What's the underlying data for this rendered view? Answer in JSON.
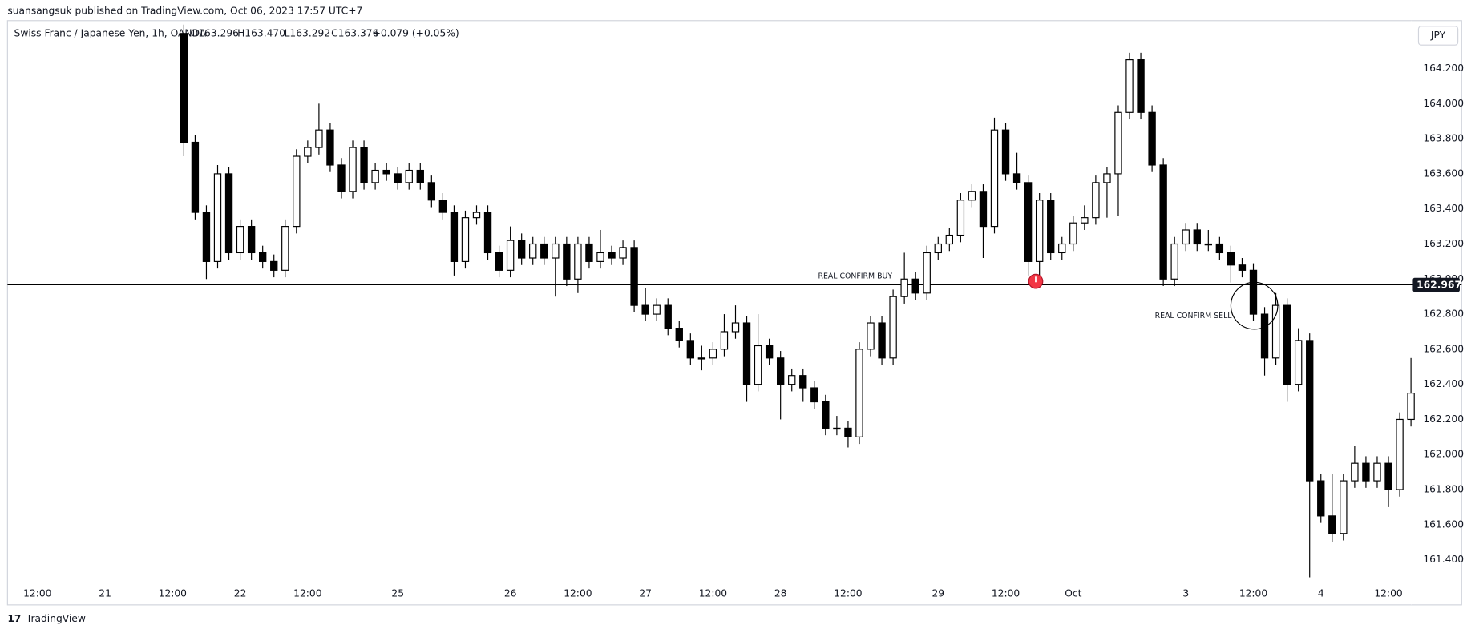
{
  "chart_data": {
    "type": "candlestick",
    "publisher_line": "suansangsuk published on TradingView.com, Oct 06, 2023 17:57 UTC+7",
    "legend_title": "Swiss Franc / Japanese Yen, 1h, OANDA",
    "ohlc_readout": [
      "O163.296",
      "H163.470",
      "L163.292",
      "C163.376",
      "+0.079 (+0.05%)"
    ],
    "currency": "JPY",
    "brand": "TradingView",
    "annotations": [
      "REAL CONFIRM BUY",
      "REAL CONFIRM SELL"
    ],
    "hline": 162.967,
    "grid": false,
    "up_color": "#ffffff",
    "down_color": "#000000",
    "ylim": [
      161.266,
      164.473
    ],
    "yticks": [
      {
        "value": 161.4,
        "label": "161.400"
      },
      {
        "value": 161.6,
        "label": "161.600"
      },
      {
        "value": 161.8,
        "label": "161.800"
      },
      {
        "value": 162.0,
        "label": "162.000"
      },
      {
        "value": 162.2,
        "label": "162.200"
      },
      {
        "value": 162.4,
        "label": "162.400"
      },
      {
        "value": 162.6,
        "label": "162.600"
      },
      {
        "value": 162.8,
        "label": "162.800"
      },
      {
        "value": 163.0,
        "label": "163.000"
      },
      {
        "value": 163.2,
        "label": "163.200"
      },
      {
        "value": 163.4,
        "label": "163.400"
      },
      {
        "value": 163.6,
        "label": "163.600"
      },
      {
        "value": 163.8,
        "label": "163.800"
      },
      {
        "value": 164.0,
        "label": "164.000"
      },
      {
        "value": 164.2,
        "label": "164.200"
      }
    ],
    "categories": [
      "12:00",
      null,
      null,
      null,
      null,
      null,
      "21",
      null,
      null,
      null,
      null,
      null,
      "12:00",
      null,
      null,
      null,
      null,
      null,
      "22",
      null,
      null,
      null,
      null,
      null,
      "12:00",
      null,
      null,
      null,
      null,
      null,
      null,
      null,
      "25",
      null,
      null,
      null,
      null,
      null,
      null,
      null,
      null,
      null,
      "26",
      null,
      null,
      null,
      null,
      null,
      "12:00",
      null,
      null,
      null,
      null,
      null,
      "27",
      null,
      null,
      null,
      null,
      null,
      "12:00",
      null,
      null,
      null,
      null,
      null,
      "28",
      null,
      null,
      null,
      null,
      null,
      "12:00",
      null,
      null,
      null,
      null,
      null,
      null,
      null,
      "29",
      null,
      null,
      null,
      null,
      null,
      "12:00",
      null,
      null,
      null,
      null,
      null,
      "Oct",
      null,
      null,
      null,
      null,
      null,
      null,
      null,
      null,
      null,
      "3",
      null,
      null,
      null,
      null,
      null,
      "12:00",
      null,
      null,
      null,
      null,
      null,
      "4",
      null,
      null,
      null,
      null,
      null,
      "12:00",
      null,
      null
    ],
    "ohlc": [
      null,
      null,
      null,
      null,
      null,
      null,
      null,
      null,
      null,
      null,
      null,
      null,
      null,
      [
        164.4,
        164.45,
        163.7,
        163.78
      ],
      [
        163.78,
        163.82,
        163.34,
        163.38
      ],
      [
        163.38,
        163.42,
        163.0,
        163.1
      ],
      [
        163.1,
        163.65,
        163.06,
        163.6
      ],
      [
        163.6,
        163.64,
        163.11,
        163.15
      ],
      [
        163.15,
        163.34,
        163.11,
        163.3
      ],
      [
        163.3,
        163.34,
        163.11,
        163.15
      ],
      [
        163.15,
        163.19,
        163.06,
        163.1
      ],
      [
        163.1,
        163.14,
        163.01,
        163.05
      ],
      [
        163.05,
        163.34,
        163.01,
        163.3
      ],
      [
        163.3,
        163.74,
        163.26,
        163.7
      ],
      [
        163.7,
        163.79,
        163.66,
        163.75
      ],
      [
        163.75,
        164.0,
        163.71,
        163.85
      ],
      [
        163.85,
        163.89,
        163.61,
        163.65
      ],
      [
        163.65,
        163.69,
        163.46,
        163.5
      ],
      [
        163.5,
        163.79,
        163.46,
        163.75
      ],
      [
        163.75,
        163.79,
        163.51,
        163.55
      ],
      [
        163.55,
        163.66,
        163.51,
        163.62
      ],
      [
        163.62,
        163.66,
        163.56,
        163.6
      ],
      [
        163.6,
        163.64,
        163.51,
        163.55
      ],
      [
        163.55,
        163.66,
        163.51,
        163.62
      ],
      [
        163.62,
        163.66,
        163.51,
        163.55
      ],
      [
        163.55,
        163.59,
        163.41,
        163.45
      ],
      [
        163.45,
        163.49,
        163.34,
        163.38
      ],
      [
        163.38,
        163.42,
        163.02,
        163.1
      ],
      [
        163.1,
        163.39,
        163.06,
        163.35
      ],
      [
        163.35,
        163.42,
        163.31,
        163.38
      ],
      [
        163.38,
        163.42,
        163.11,
        163.15
      ],
      [
        163.15,
        163.19,
        163.01,
        163.05
      ],
      [
        163.05,
        163.3,
        163.01,
        163.22
      ],
      [
        163.22,
        163.26,
        163.08,
        163.12
      ],
      [
        163.12,
        163.24,
        163.08,
        163.2
      ],
      [
        163.2,
        163.24,
        163.08,
        163.12
      ],
      [
        163.12,
        163.24,
        162.9,
        163.2
      ],
      [
        163.2,
        163.24,
        162.96,
        163.0
      ],
      [
        163.0,
        163.24,
        162.92,
        163.2
      ],
      [
        163.2,
        163.24,
        163.06,
        163.1
      ],
      [
        163.1,
        163.28,
        163.06,
        163.15
      ],
      [
        163.15,
        163.19,
        163.08,
        163.12
      ],
      [
        163.12,
        163.22,
        163.08,
        163.18
      ],
      [
        163.18,
        163.22,
        162.81,
        162.85
      ],
      [
        162.85,
        162.95,
        162.76,
        162.8
      ],
      [
        162.8,
        162.89,
        162.76,
        162.85
      ],
      [
        162.85,
        162.89,
        162.68,
        162.72
      ],
      [
        162.72,
        162.76,
        162.61,
        162.65
      ],
      [
        162.65,
        162.69,
        162.51,
        162.55
      ],
      [
        162.55,
        162.62,
        162.48,
        162.55
      ],
      [
        162.55,
        162.64,
        162.51,
        162.6
      ],
      [
        162.6,
        162.8,
        162.56,
        162.7
      ],
      [
        162.7,
        162.85,
        162.66,
        162.75
      ],
      [
        162.75,
        162.79,
        162.3,
        162.4
      ],
      [
        162.4,
        162.8,
        162.36,
        162.62
      ],
      [
        162.62,
        162.66,
        162.51,
        162.55
      ],
      [
        162.55,
        162.59,
        162.2,
        162.4
      ],
      [
        162.4,
        162.49,
        162.36,
        162.45
      ],
      [
        162.45,
        162.49,
        162.3,
        162.38
      ],
      [
        162.38,
        162.42,
        162.26,
        162.3
      ],
      [
        162.3,
        162.34,
        162.11,
        162.15
      ],
      [
        162.15,
        162.22,
        162.11,
        162.15
      ],
      [
        162.15,
        162.19,
        162.04,
        162.1
      ],
      [
        162.1,
        162.64,
        162.06,
        162.6
      ],
      [
        162.6,
        162.79,
        162.56,
        162.75
      ],
      [
        162.75,
        162.79,
        162.51,
        162.55
      ],
      [
        162.55,
        162.94,
        162.51,
        162.9
      ],
      [
        162.9,
        163.15,
        162.86,
        163.0
      ],
      [
        163.0,
        163.04,
        162.88,
        162.92
      ],
      [
        162.92,
        163.19,
        162.88,
        163.15
      ],
      [
        163.15,
        163.24,
        163.11,
        163.2
      ],
      [
        163.2,
        163.29,
        163.16,
        163.25
      ],
      [
        163.25,
        163.49,
        163.21,
        163.45
      ],
      [
        163.45,
        163.54,
        163.41,
        163.5
      ],
      [
        163.5,
        163.54,
        163.12,
        163.3
      ],
      [
        163.3,
        163.92,
        163.26,
        163.85
      ],
      [
        163.85,
        163.89,
        163.56,
        163.6
      ],
      [
        163.6,
        163.72,
        163.51,
        163.55
      ],
      [
        163.55,
        163.59,
        163.02,
        163.1
      ],
      [
        163.1,
        163.49,
        162.98,
        163.45
      ],
      [
        163.45,
        163.49,
        163.11,
        163.15
      ],
      [
        163.15,
        163.24,
        163.11,
        163.2
      ],
      [
        163.2,
        163.36,
        163.16,
        163.32
      ],
      [
        163.32,
        163.42,
        163.28,
        163.35
      ],
      [
        163.35,
        163.59,
        163.31,
        163.55
      ],
      [
        163.55,
        163.64,
        163.35,
        163.6
      ],
      [
        163.6,
        163.99,
        163.36,
        163.95
      ],
      [
        163.95,
        164.29,
        163.91,
        164.25
      ],
      [
        164.25,
        164.29,
        163.91,
        163.95
      ],
      [
        163.95,
        163.99,
        163.61,
        163.65
      ],
      [
        163.65,
        163.69,
        162.96,
        163.0
      ],
      [
        163.0,
        163.24,
        162.96,
        163.2
      ],
      [
        163.2,
        163.32,
        163.16,
        163.28
      ],
      [
        163.28,
        163.32,
        163.16,
        163.2
      ],
      [
        163.2,
        163.28,
        163.16,
        163.2
      ],
      [
        163.2,
        163.24,
        163.11,
        163.15
      ],
      [
        163.15,
        163.19,
        162.98,
        163.08
      ],
      [
        163.08,
        163.12,
        163.01,
        163.05
      ],
      [
        163.05,
        163.09,
        162.76,
        162.8
      ],
      [
        162.8,
        162.84,
        162.45,
        162.55
      ],
      [
        162.55,
        162.92,
        162.51,
        162.85
      ],
      [
        162.85,
        162.89,
        162.3,
        162.4
      ],
      [
        162.4,
        162.72,
        162.36,
        162.65
      ],
      [
        162.65,
        162.69,
        161.3,
        161.85
      ],
      [
        161.85,
        161.89,
        161.61,
        161.65
      ],
      [
        161.65,
        161.89,
        161.5,
        161.55
      ],
      [
        161.55,
        161.89,
        161.51,
        161.85
      ],
      [
        161.85,
        162.05,
        161.81,
        161.95
      ],
      [
        161.95,
        161.99,
        161.81,
        161.85
      ],
      [
        161.85,
        161.99,
        161.81,
        161.95
      ],
      [
        161.95,
        161.99,
        161.7,
        161.8
      ],
      [
        161.8,
        162.24,
        161.76,
        162.2
      ],
      [
        162.2,
        162.55,
        162.16,
        162.35
      ]
    ]
  }
}
